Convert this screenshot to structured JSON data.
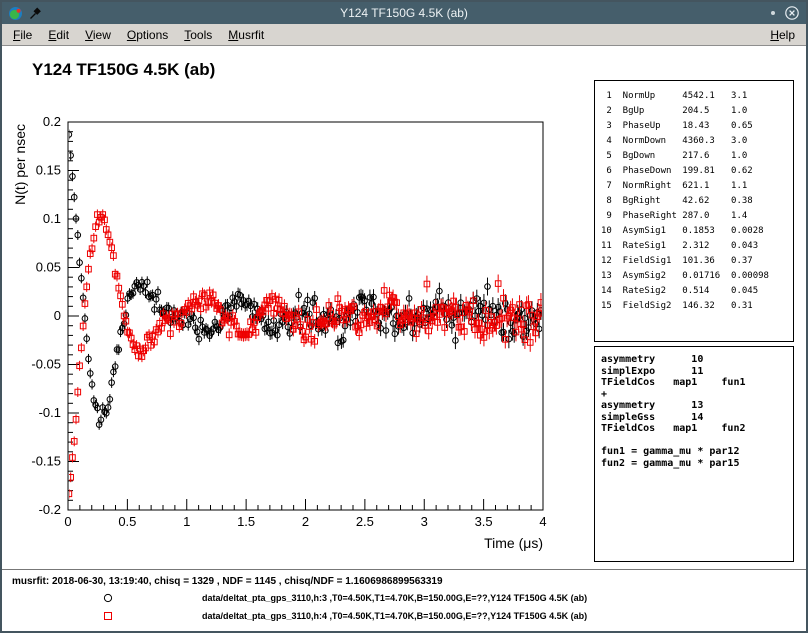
{
  "window": {
    "title": "Y124 TF150G 4.5K (ab)",
    "icons": [
      "musrfit-app-icon",
      "pin-icon",
      "dot-icon",
      "close-icon"
    ]
  },
  "colors": {
    "titlebar": "#455e6b",
    "menubar": "#d8d5d0",
    "series_black": "#000000",
    "series_red": "#ee0000"
  },
  "menubar": {
    "items": [
      {
        "label": "File",
        "underline": 0
      },
      {
        "label": "Edit",
        "underline": 0
      },
      {
        "label": "View",
        "underline": 0
      },
      {
        "label": "Options",
        "underline": 0
      },
      {
        "label": "Tools",
        "underline": 0
      },
      {
        "label": "Musrfit",
        "underline": 0
      }
    ],
    "right_item": {
      "label": "Help",
      "underline": 0
    }
  },
  "chart_data": {
    "type": "scatter",
    "title": "Y124 TF150G 4.5K (ab)",
    "xlabel": "Time (μs)",
    "ylabel": "N(t) per nsec",
    "xlim": [
      0,
      4
    ],
    "ylim": [
      -0.2,
      0.2
    ],
    "x_major_ticks": [
      0,
      0.5,
      1,
      1.5,
      2,
      2.5,
      3,
      3.5,
      4
    ],
    "x_tick_labels": [
      "0",
      "0.5",
      "1",
      "1.5",
      "2",
      "2.5",
      "3",
      "3.5",
      "4"
    ],
    "y_major_ticks": [
      0.2,
      0.15,
      0.1,
      0.05,
      0,
      -0.05,
      -0.1,
      -0.15,
      -0.2
    ],
    "y_tick_labels": [
      "0.2",
      "0.15",
      "0.1",
      "0.05",
      "0",
      "-0.05",
      "-0.1",
      "-0.15",
      "-0.2"
    ],
    "x_minor_step": 0.1,
    "y_minor_step": 0.01,
    "grid": false,
    "bin_width_us": 0.015,
    "t_start_us": 0.0075,
    "n_points": 266,
    "noise": {
      "sigma0": 0.004,
      "sigma_slope": 0.002,
      "err0": 0.005,
      "err_slope": 0.0012
    },
    "series": [
      {
        "name": "data/deltat_pta_gps_3110,h:3 ,T0=4.50K,T1=4.70K,B=150.00G,E=??,Y124 TF150G 4.5K (ab)",
        "marker": "open-circle",
        "color": "#000000",
        "noise_seed": 1337,
        "model": {
          "asym1": 0.1853,
          "rate1": 2.312,
          "freq1_mhz": 1.3738,
          "asym2": 0.01716,
          "gauss_rate2": 0.514,
          "freq2_mhz": 1.9832,
          "phase_deg": 18.43
        }
      },
      {
        "name": "data/deltat_pta_gps_3110,h:4 ,T0=4.50K,T1=4.70K,B=150.00G,E=??,Y124 TF150G 4.5K (ab)",
        "marker": "open-square",
        "color": "#ee0000",
        "noise_seed": 4242,
        "model": {
          "asym1": 0.1853,
          "rate1": 2.312,
          "freq1_mhz": 1.3738,
          "asym2": 0.01716,
          "gauss_rate2": 0.514,
          "freq2_mhz": 1.9832,
          "phase_deg": 199.81
        }
      }
    ]
  },
  "parameters": {
    "rows": [
      {
        "no": 1,
        "name": "NormUp",
        "value": "4542.1",
        "error": "3.1"
      },
      {
        "no": 2,
        "name": "BgUp",
        "value": "204.5",
        "error": "1.0"
      },
      {
        "no": 3,
        "name": "PhaseUp",
        "value": "18.43",
        "error": "0.65"
      },
      {
        "no": 4,
        "name": "NormDown",
        "value": "4360.3",
        "error": "3.0"
      },
      {
        "no": 5,
        "name": "BgDown",
        "value": "217.6",
        "error": "1.0"
      },
      {
        "no": 6,
        "name": "PhaseDown",
        "value": "199.81",
        "error": "0.62"
      },
      {
        "no": 7,
        "name": "NormRight",
        "value": "621.1",
        "error": "1.1"
      },
      {
        "no": 8,
        "name": "BgRight",
        "value": "42.62",
        "error": "0.38"
      },
      {
        "no": 9,
        "name": "PhaseRight",
        "value": "287.0",
        "error": "1.4"
      },
      {
        "no": 10,
        "name": "AsymSig1",
        "value": "0.1853",
        "error": "0.0028"
      },
      {
        "no": 11,
        "name": "RateSig1",
        "value": "2.312",
        "error": "0.043"
      },
      {
        "no": 12,
        "name": "FieldSig1",
        "value": "101.36",
        "error": "0.37"
      },
      {
        "no": 13,
        "name": "AsymSig2",
        "value": "0.01716",
        "error": "0.00098"
      },
      {
        "no": 14,
        "name": "RateSig2",
        "value": "0.514",
        "error": "0.045"
      },
      {
        "no": 15,
        "name": "FieldSig2",
        "value": "146.32",
        "error": "0.31"
      }
    ]
  },
  "theory": {
    "lines": [
      "asymmetry      10",
      "simplExpo      11",
      "TFieldCos   map1    fun1",
      "+",
      "asymmetry      13",
      "simpleGss      14",
      "TFieldCos   map1    fun2",
      "",
      "fun1 = gamma_mu * par12",
      "fun2 = gamma_mu * par15"
    ]
  },
  "footer": {
    "status": "musrfit: 2018-06-30, 13:19:40, chisq = 1329 , NDF = 1145 , chisq/NDF = 1.1606986899563319",
    "legend": [
      {
        "marker": "open-circle",
        "color": "#000000",
        "text": "data/deltat_pta_gps_3110,h:3 ,T0=4.50K,T1=4.70K,B=150.00G,E=??,Y124 TF150G 4.5K (ab)"
      },
      {
        "marker": "open-square",
        "color": "#ee0000",
        "text": "data/deltat_pta_gps_3110,h:4 ,T0=4.50K,T1=4.70K,B=150.00G,E=??,Y124 TF150G 4.5K (ab)"
      }
    ]
  }
}
